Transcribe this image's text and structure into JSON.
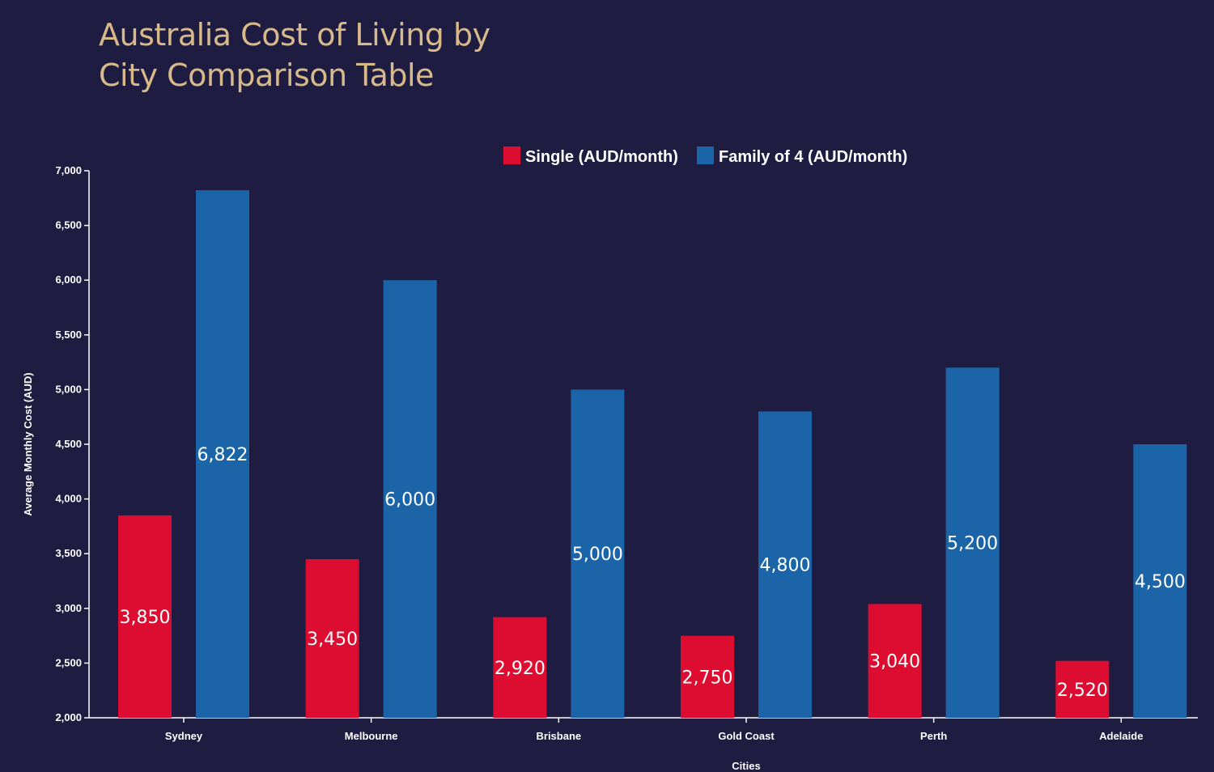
{
  "colors": {
    "background": "#1e1c40",
    "title": "#d8b98a",
    "text": "#ffffff",
    "axis": "#ffffff",
    "single": "#dc0d30",
    "family": "#1b64a8"
  },
  "chart_data": {
    "type": "bar",
    "title_lines": [
      "Australia Cost of Living by",
      "City Comparison Table"
    ],
    "xlabel": "Cities",
    "ylabel": "Average Monthly Cost (AUD)",
    "categories": [
      "Sydney",
      "Melbourne",
      "Brisbane",
      "Gold Coast",
      "Perth",
      "Adelaide"
    ],
    "series": [
      {
        "name": "Single (AUD/month)",
        "values": [
          3850,
          3450,
          2920,
          2750,
          3040,
          2520
        ],
        "labels": [
          "3,850",
          "3,450",
          "2,920",
          "2,750",
          "3,040",
          "2,520"
        ]
      },
      {
        "name": "Family of 4 (AUD/month)",
        "values": [
          6822,
          6000,
          5000,
          4800,
          5200,
          4500
        ],
        "labels": [
          "6,822",
          "6,000",
          "5,000",
          "4,800",
          "5,200",
          "4,500"
        ]
      }
    ],
    "ylim": [
      2000,
      7000
    ],
    "yticks": [
      2000,
      2500,
      3000,
      3500,
      4000,
      4500,
      5000,
      5500,
      6000,
      6500,
      7000
    ],
    "ytick_labels": [
      "2,000",
      "2,500",
      "3,000",
      "3,500",
      "4,000",
      "4,500",
      "5,000",
      "5,500",
      "6,000",
      "6,500",
      "7,000"
    ],
    "legend_position": "top-center",
    "grid": false
  }
}
